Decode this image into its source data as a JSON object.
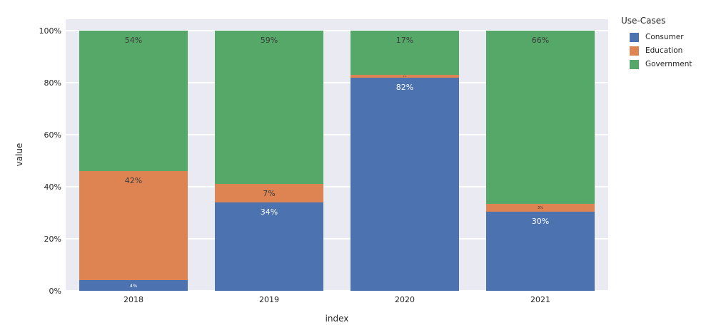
{
  "chart_data": {
    "type": "bar",
    "stacked": true,
    "percent_of_total": true,
    "title": "",
    "xlabel": "index",
    "ylabel": "value",
    "categories": [
      "2018",
      "2019",
      "2020",
      "2021"
    ],
    "series": [
      {
        "name": "Consumer",
        "color": "#4c72b0",
        "label_color": "#ffffff",
        "values": [
          4,
          34,
          82,
          30
        ],
        "labels": [
          "4%",
          "34%",
          "82%",
          "30%"
        ]
      },
      {
        "name": "Education",
        "color": "#dd8452",
        "label_color": "#3d3d3d",
        "values": [
          42,
          7,
          1,
          3
        ],
        "labels": [
          "42%",
          "7%",
          "1%",
          "3%"
        ]
      },
      {
        "name": "Government",
        "color": "#55a868",
        "label_color": "#3d3d3d",
        "values": [
          54,
          59,
          17,
          66
        ],
        "labels": [
          "54%",
          "59%",
          "17%",
          "66%"
        ]
      }
    ],
    "yticks": [
      {
        "value": 0,
        "label": "0%"
      },
      {
        "value": 20,
        "label": "20%"
      },
      {
        "value": 40,
        "label": "40%"
      },
      {
        "value": 60,
        "label": "60%"
      },
      {
        "value": 80,
        "label": "80%"
      },
      {
        "value": 100,
        "label": "100%"
      }
    ],
    "ylim": [
      0,
      100
    ],
    "grid": true,
    "legend": {
      "title": "Use-Cases",
      "position": "right"
    },
    "colors": {
      "plot_background": "#eaeaf2",
      "grid_line": "#ffffff",
      "tick_text": "#262626"
    }
  }
}
